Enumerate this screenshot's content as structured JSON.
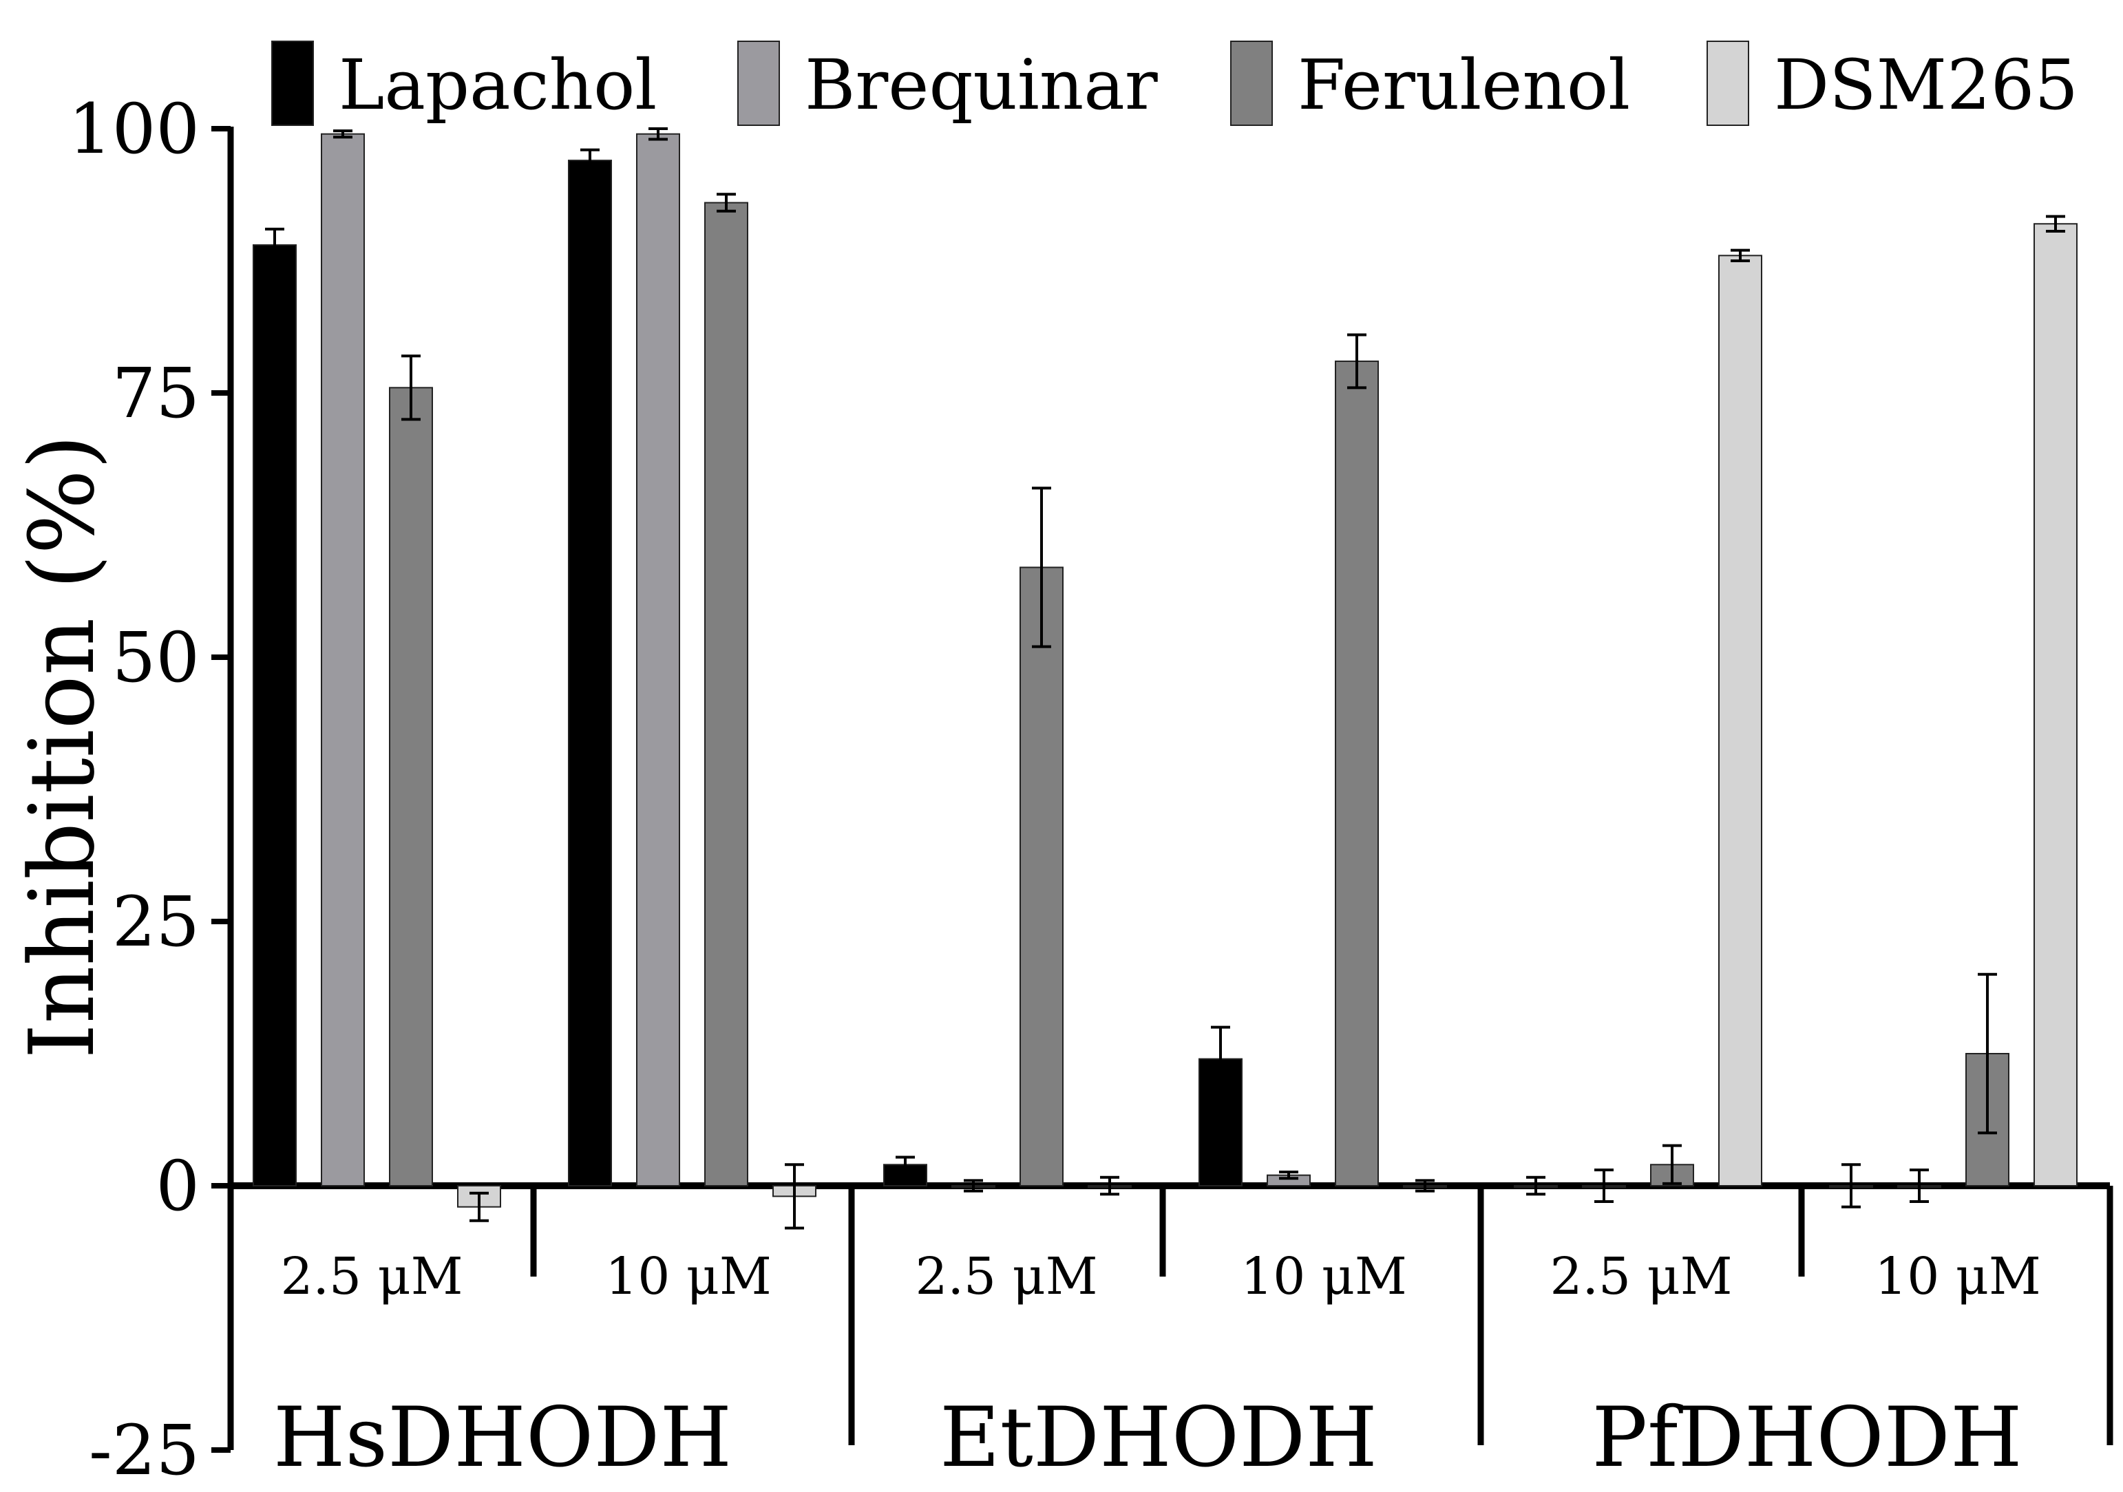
{
  "chart_data": {
    "type": "bar",
    "title": "",
    "xlabel": "",
    "ylabel": "Inhibition (%)",
    "ylim": [
      -25,
      100
    ],
    "yticks": [
      {
        "value": 100,
        "label": "100"
      },
      {
        "value": 75,
        "label": "75"
      },
      {
        "value": 50,
        "label": "50"
      },
      {
        "value": 25,
        "label": "25"
      },
      {
        "value": 0,
        "label": "0"
      },
      {
        "value": -25,
        "label": "-25"
      }
    ],
    "legend_position": "top",
    "groups": [
      {
        "name": "HsDHODH",
        "concentrations": [
          "2.5 μM",
          "10 μM"
        ]
      },
      {
        "name": "EtDHODH",
        "concentrations": [
          "2.5 μM",
          "10 μM"
        ]
      },
      {
        "name": "PfDHODH",
        "concentrations": [
          "2.5 μM",
          "10 μM"
        ]
      }
    ],
    "categories": [
      "HsDHODH 2.5 μM",
      "HsDHODH 10 μM",
      "EtDHODH 2.5 μM",
      "EtDHODH 10 μM",
      "PfDHODH 2.5 μM",
      "PfDHODH 10 μM"
    ],
    "series": [
      {
        "name": "Lapachol",
        "color": "#000000",
        "values": [
          89,
          97,
          2,
          12,
          0,
          0
        ],
        "errors": [
          1.5,
          1,
          0.7,
          3,
          0.8,
          2
        ]
      },
      {
        "name": "Brequinar",
        "color": "#9b9a9f",
        "values": [
          99.5,
          99.5,
          0,
          1,
          0,
          0
        ],
        "errors": [
          0.3,
          0.5,
          0.5,
          0.3,
          1.5,
          1.5
        ]
      },
      {
        "name": "Ferulenol",
        "color": "#808080",
        "values": [
          75.5,
          93,
          58.5,
          78,
          2,
          12.5
        ],
        "errors": [
          3,
          0.8,
          7.5,
          2.5,
          1.8,
          7.5
        ]
      },
      {
        "name": "DSM265",
        "color": "#d4d4d4",
        "values": [
          -2,
          -1,
          0,
          0,
          88,
          91
        ],
        "errors": [
          1.3,
          3,
          0.8,
          0.5,
          0.5,
          0.7
        ]
      }
    ]
  }
}
